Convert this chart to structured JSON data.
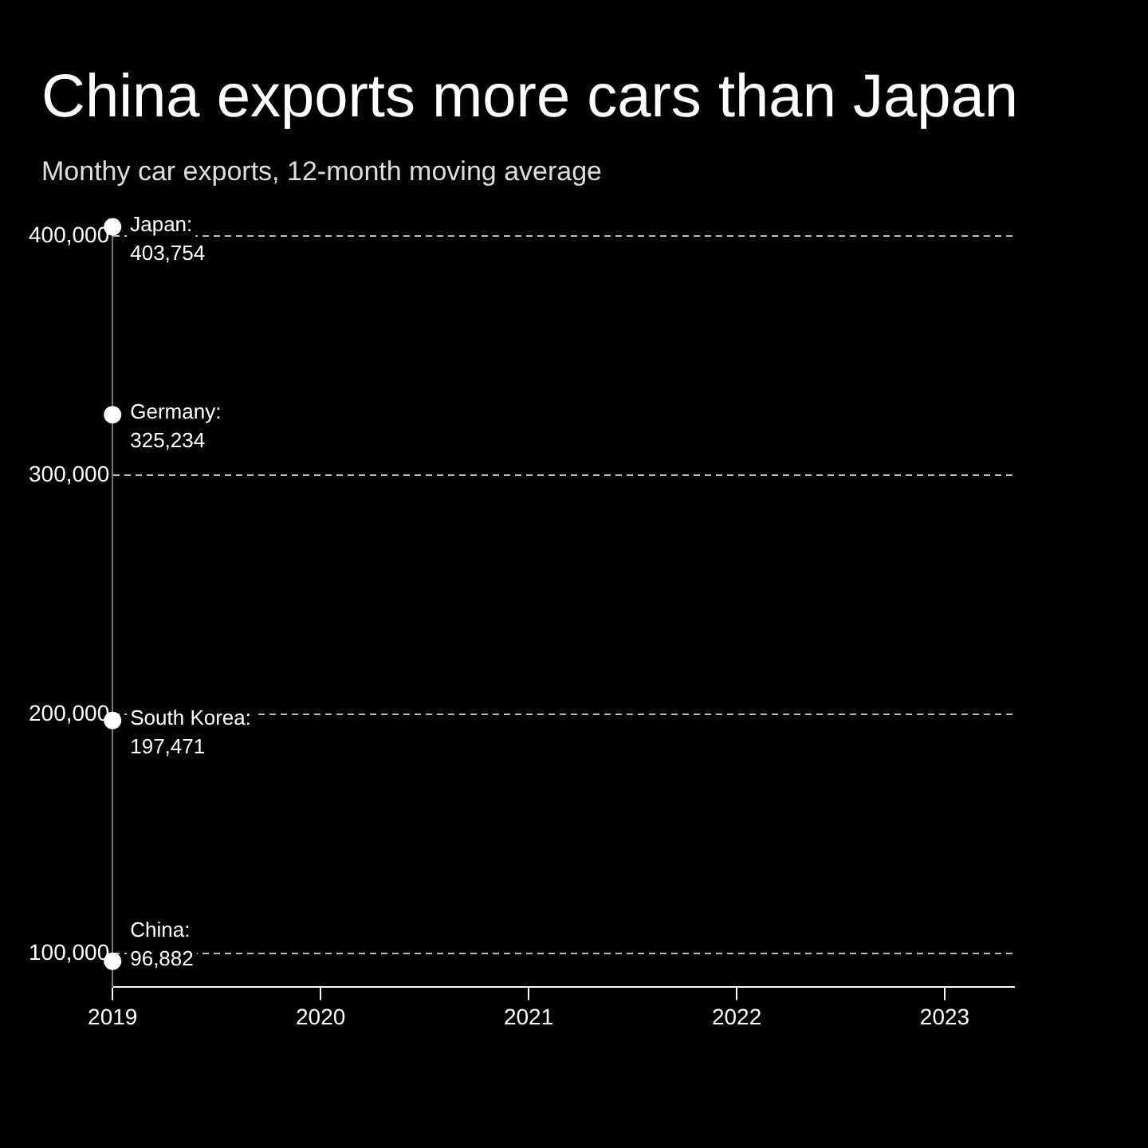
{
  "chart_data": {
    "type": "scatter",
    "title": "China exports more cars than Japan",
    "subtitle": "Monthy car exports, 12-month moving average",
    "xlim": [
      "2019",
      "2023-05"
    ],
    "xticks": [
      "2019",
      "2020",
      "2021",
      "2022",
      "2023"
    ],
    "ylim": [
      86000,
      405000
    ],
    "yticks": [
      {
        "value": 100000,
        "label": "100,000"
      },
      {
        "value": 200000,
        "label": "200,000"
      },
      {
        "value": 300000,
        "label": "300,000"
      },
      {
        "value": 400000,
        "label": "400,000"
      }
    ],
    "grid": "y",
    "marker": "circle",
    "legend": false,
    "series": [
      {
        "name": "Japan:",
        "color": "#ffffff",
        "x": [
          "2019"
        ],
        "values": [
          403754
        ],
        "value_labels": [
          "403,754"
        ]
      },
      {
        "name": "Germany:",
        "color": "#ffffff",
        "x": [
          "2019"
        ],
        "values": [
          325234
        ],
        "value_labels": [
          "325,234"
        ]
      },
      {
        "name": "South Korea:",
        "color": "#ffffff",
        "x": [
          "2019"
        ],
        "values": [
          197471
        ],
        "value_labels": [
          "197,471"
        ]
      },
      {
        "name": "China:",
        "color": "#ffffff",
        "x": [
          "2019"
        ],
        "values": [
          96882
        ],
        "value_labels": [
          "96,882"
        ]
      }
    ]
  }
}
